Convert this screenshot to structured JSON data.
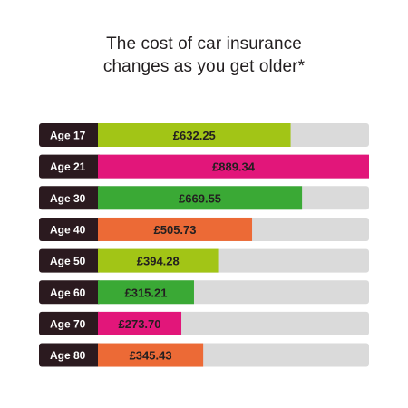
{
  "title_lines": [
    "The cost of car insurance",
    "changes as you get older*"
  ],
  "chart_data": {
    "type": "bar",
    "orientation": "horizontal",
    "title": "The cost of car insurance changes as you get older*",
    "categories": [
      "Age 17",
      "Age 21",
      "Age 30",
      "Age 40",
      "Age 50",
      "Age 60",
      "Age 70",
      "Age 80"
    ],
    "values": [
      632.25,
      889.34,
      669.55,
      505.73,
      394.28,
      315.21,
      273.7,
      345.43
    ],
    "value_labels": [
      "£632.25",
      "£889.34",
      "£669.55",
      "£505.73",
      "£394.28",
      "£315.21",
      "£273.70",
      "£345.43"
    ],
    "xlim": [
      0,
      889.34
    ],
    "grid": false,
    "colors": {
      "lime": "#a2c516",
      "magenta": "#e2167a",
      "green": "#3aa935",
      "orange": "#ec6a36",
      "track": "#dadada",
      "label_bg": "#2b1a1f"
    },
    "bar_colors": [
      "#a2c516",
      "#e2167a",
      "#3aa935",
      "#ec6a36",
      "#a2c516",
      "#3aa935",
      "#e2167a",
      "#ec6a36"
    ]
  }
}
